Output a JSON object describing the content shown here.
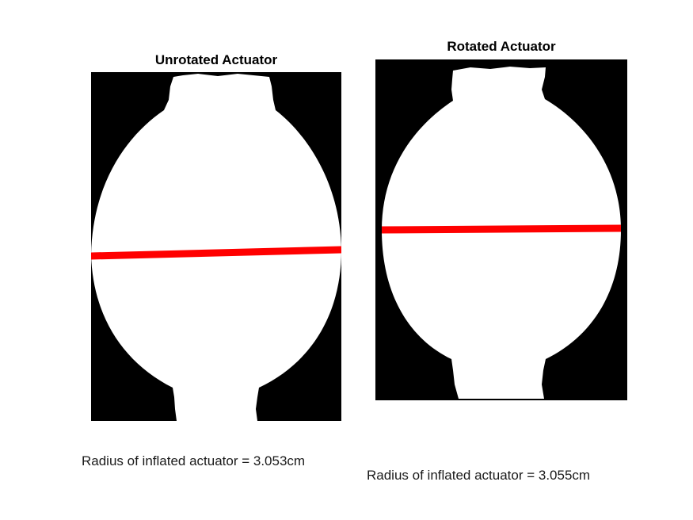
{
  "figure": {
    "left_panel": {
      "title": "Unrotated Actuator",
      "caption": "Radius of inflated actuator = 3.053cm"
    },
    "right_panel": {
      "title": "Rotated Actuator",
      "caption": "Radius of inflated actuator = 3.055cm"
    },
    "colors": {
      "background": "#000000",
      "actuator": "#ffffff",
      "measurement_line": "#ff0000"
    }
  }
}
